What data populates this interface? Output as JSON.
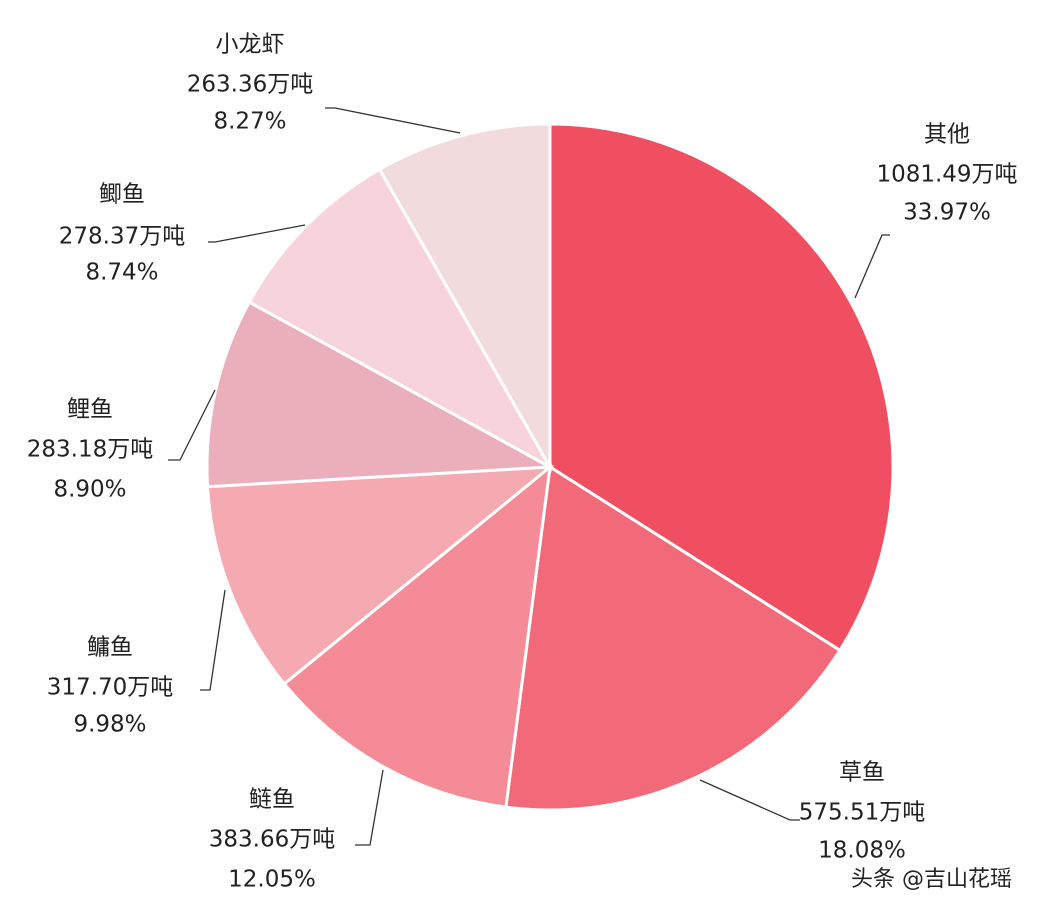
{
  "chart_data": {
    "type": "pie",
    "categories": [
      "其他",
      "草鱼",
      "鲢鱼",
      "鳙鱼",
      "鲤鱼",
      "鲫鱼",
      "小龙虾"
    ],
    "values": [
      1081.49,
      575.51,
      383.66,
      317.7,
      283.18,
      278.37,
      263.36
    ],
    "value_labels": [
      "1081.49万吨",
      "575.51万吨",
      "383.66万吨",
      "317.70万吨",
      "283.18万吨",
      "278.37万吨",
      "263.36万吨"
    ],
    "percents": [
      33.97,
      18.08,
      12.05,
      9.98,
      8.9,
      8.74,
      8.27
    ],
    "percent_labels": [
      "33.97%",
      "18.08%",
      "12.05%",
      "9.98%",
      "8.90%",
      "8.74%",
      "8.27%"
    ],
    "colors": [
      "#ef4f61",
      "#f26a79",
      "#f48b96",
      "#f5a9b1",
      "#ebaebb",
      "#f7d3dc",
      "#f2dbdd"
    ],
    "watermark": "头条 @吉山花瑶"
  }
}
